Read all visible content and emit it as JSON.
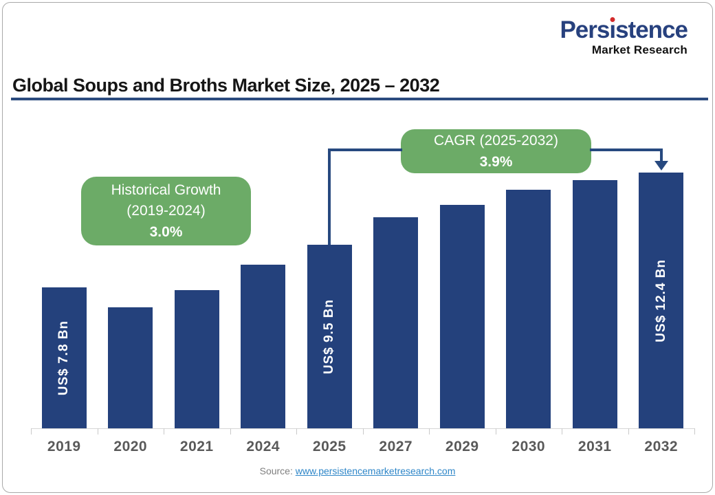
{
  "brand": {
    "name_pre": "Pers",
    "name_i": "i",
    "name_post": "stence",
    "subtitle": "Market Research"
  },
  "title": "Global Soups and Broths Market Size, 2025 – 2032",
  "annotations": {
    "historical": {
      "line1": "Historical Growth",
      "line2": "(2019-2024)",
      "value": "3.0%"
    },
    "cagr": {
      "line1": "CAGR (2025-2032)",
      "value": "3.9%"
    }
  },
  "source": {
    "prefix": "Source:",
    "link": "www.persistencemarketresearch.com"
  },
  "colors": {
    "bar": "#24417C",
    "connector": "#27497F",
    "green": "#6CAB67",
    "underline": "#2B4B7E",
    "logo_blue": "#27417E",
    "logo_dot": "#D32B2B",
    "axis_label": "#595959",
    "link": "#2E86C8"
  },
  "chart_data": {
    "type": "bar",
    "title": "Global Soups and Broths Market Size, 2025 – 2032",
    "unit": "US$ Bn",
    "categories": [
      "2019",
      "2020",
      "2021",
      "2024",
      "2025",
      "2027",
      "2029",
      "2030",
      "2031",
      "2032"
    ],
    "values": [
      7.8,
      7.0,
      7.7,
      8.7,
      9.5,
      10.6,
      11.1,
      11.7,
      12.1,
      12.4
    ],
    "labeled_values": {
      "2019": "US$ 7.8 Bn",
      "2025": "US$ 9.5 Bn",
      "2032": "US$ 12.4 Bn"
    },
    "historical_growth": {
      "period": "2019-2024",
      "value_pct": 3.0
    },
    "cagr": {
      "period": "2025-2032",
      "value_pct": 3.9
    },
    "xlabel": "",
    "ylabel": "",
    "grid": false,
    "legend": false
  }
}
